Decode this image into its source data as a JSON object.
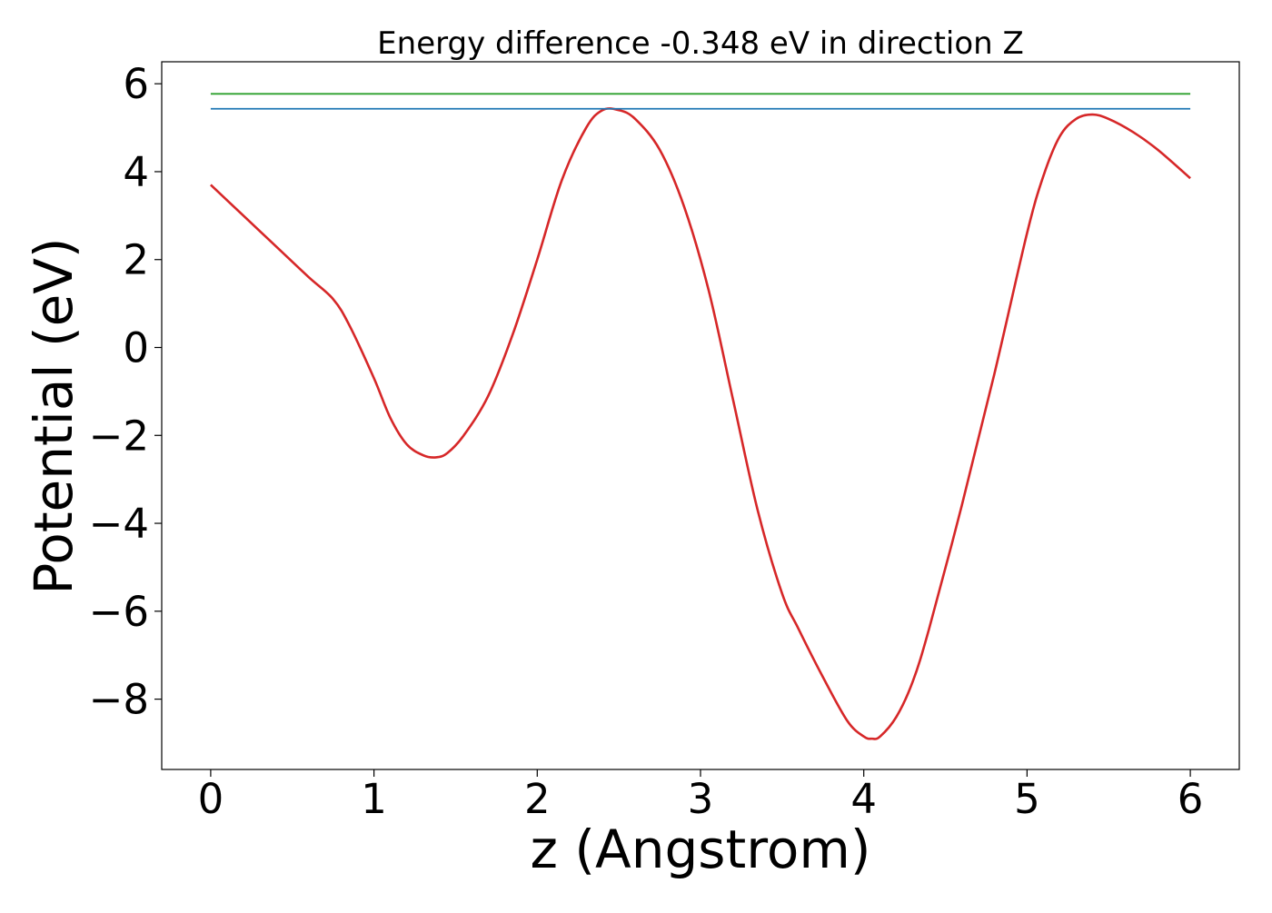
{
  "chart_data": {
    "type": "line",
    "title": "Energy difference -0.348 eV in direction Z",
    "xlabel": "z (Angstrom)",
    "ylabel": "Potential (eV)",
    "xlim": [
      -0.3,
      6.3
    ],
    "ylim": [
      -9.6,
      6.5
    ],
    "x_ticks": [
      0,
      1,
      2,
      3,
      4,
      5,
      6
    ],
    "x_tick_labels": [
      "0",
      "1",
      "2",
      "3",
      "4",
      "5",
      "6"
    ],
    "y_ticks": [
      -8,
      -6,
      -4,
      -2,
      0,
      2,
      4,
      6
    ],
    "y_tick_labels": [
      "−8",
      "−6",
      "−4",
      "−2",
      "0",
      "2",
      "4",
      "6"
    ],
    "grid": false,
    "series": [
      {
        "color": "#d62728",
        "x": [
          0,
          0.2,
          0.4,
          0.6,
          0.75,
          0.85,
          1.0,
          1.1,
          1.2,
          1.3,
          1.38,
          1.45,
          1.55,
          1.7,
          1.85,
          2.0,
          2.15,
          2.3,
          2.4,
          2.5,
          2.6,
          2.75,
          2.9,
          3.05,
          3.2,
          3.35,
          3.5,
          3.6,
          3.75,
          3.9,
          4.0,
          4.05,
          4.1,
          4.2,
          4.3,
          4.4,
          4.6,
          4.8,
          5.0,
          5.1,
          5.2,
          5.3,
          5.4,
          5.5,
          5.65,
          5.8,
          6.0
        ],
        "y": [
          3.7,
          3.0,
          2.3,
          1.6,
          1.1,
          0.5,
          -0.7,
          -1.6,
          -2.2,
          -2.45,
          -2.5,
          -2.4,
          -2.0,
          -1.1,
          0.3,
          2.0,
          3.8,
          5.0,
          5.4,
          5.4,
          5.2,
          4.5,
          3.2,
          1.3,
          -1.2,
          -3.7,
          -5.6,
          -6.4,
          -7.5,
          -8.5,
          -8.85,
          -8.9,
          -8.85,
          -8.4,
          -7.6,
          -6.4,
          -3.6,
          -0.6,
          2.6,
          3.9,
          4.8,
          5.2,
          5.3,
          5.2,
          4.9,
          4.5,
          3.85
        ]
      },
      {
        "color": "#1f77b4",
        "x": [
          0,
          6
        ],
        "y": [
          5.43,
          5.43
        ]
      },
      {
        "color": "#2ca02c",
        "x": [
          0,
          6
        ],
        "y": [
          5.77,
          5.77
        ]
      }
    ],
    "colors": {
      "axes": "#000000",
      "background": "#ffffff"
    }
  }
}
